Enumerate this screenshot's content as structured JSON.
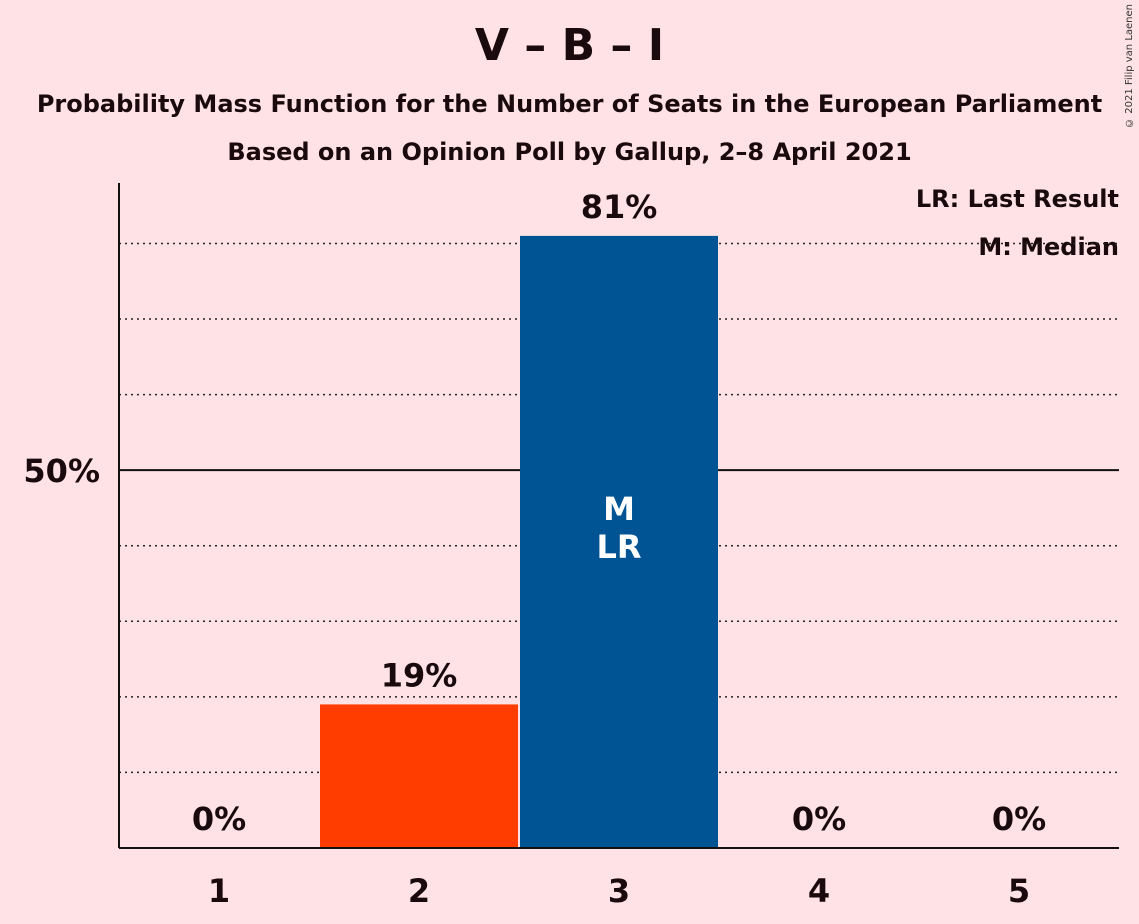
{
  "title": "V – B – I",
  "subtitle": "Probability Mass Function for the Number of Seats in the European Parliament",
  "subtitle2": "Based on an Opinion Poll by Gallup, 2–8 April 2021",
  "copyright": "© 2021 Filip van Laenen",
  "legend": {
    "last_result": "LR: Last Result",
    "median": "M: Median"
  },
  "colors": {
    "background": "#FFE2E6",
    "bar_default": "#FF3D00",
    "bar_median": "#005494",
    "text": "#1a0a0e"
  },
  "chart_data": {
    "type": "bar",
    "categories": [
      "1",
      "2",
      "3",
      "4",
      "5"
    ],
    "values": [
      0,
      19,
      81,
      0,
      0
    ],
    "value_labels": [
      "0%",
      "19%",
      "81%",
      "0%",
      "0%"
    ],
    "ylim": [
      0,
      88
    ],
    "ytick_label": "50%",
    "ytick_value": 50,
    "grid_values": [
      10,
      20,
      30,
      40,
      60,
      70,
      80
    ],
    "median_index": 2,
    "last_result_index": 2,
    "bar_markers": [
      "M",
      "LR"
    ],
    "grid": true
  }
}
